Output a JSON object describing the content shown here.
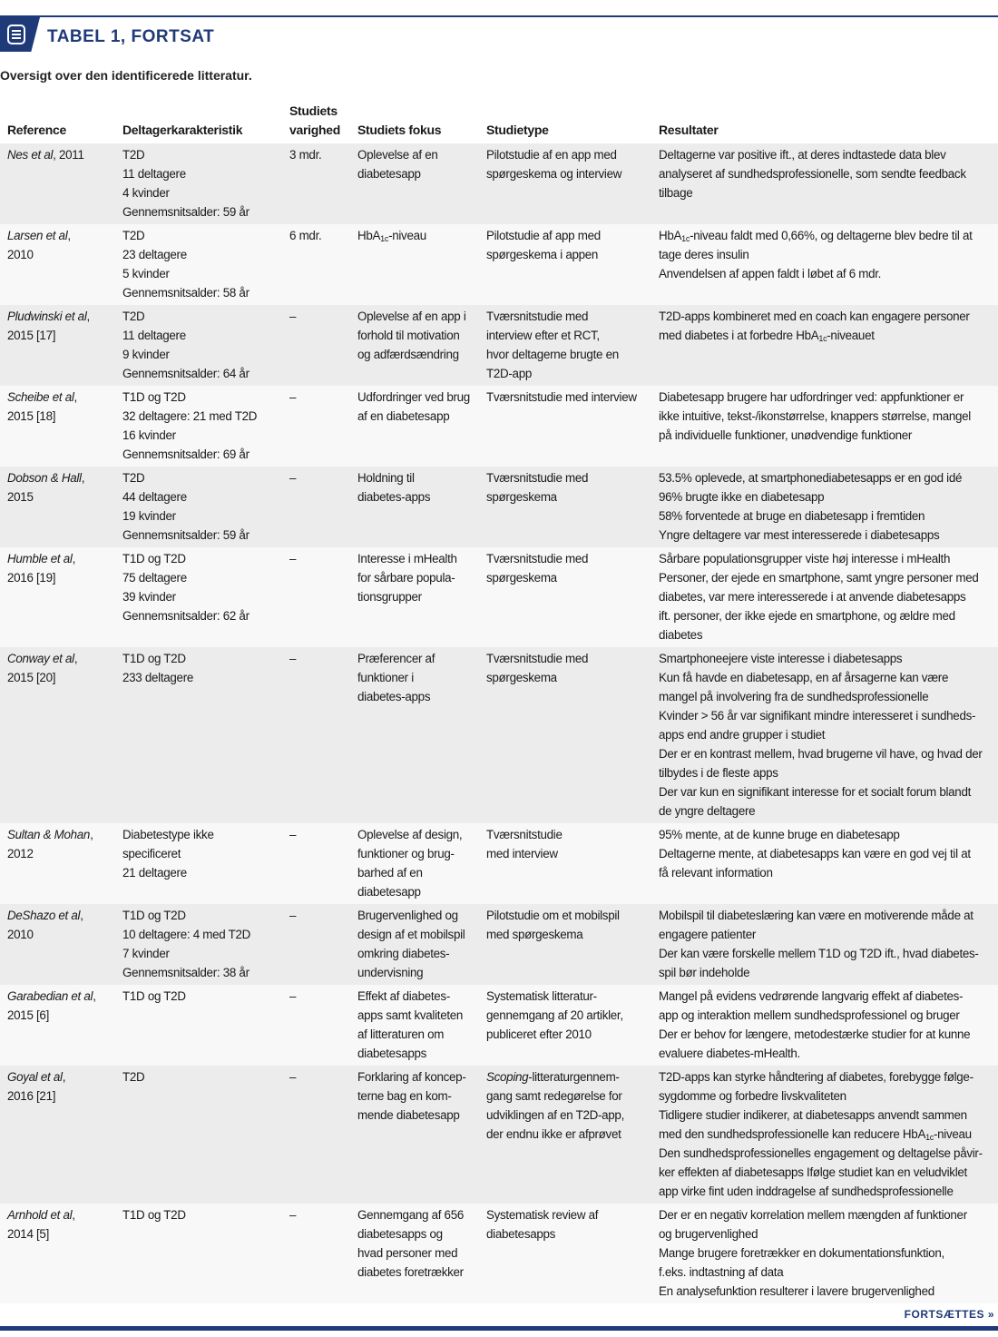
{
  "header": {
    "title": "TABEL 1, FORTSAT",
    "subtitle": "Oversigt over den identificerede litteratur.",
    "icon": "document-list-icon",
    "accent_color": "#1f3a78"
  },
  "columns": [
    "Reference",
    "Deltagerkarakteristik",
    "Studiets varighed",
    "Studiets fokus",
    "Studietype",
    "Resultater"
  ],
  "rows": [
    {
      "ref": {
        "name": "Nes et al",
        "rest": ", 2011",
        "line2": ""
      },
      "participants": [
        "T2D",
        "11 deltagere",
        "4 kvinder",
        "Gennemsnitsalder: 59 år"
      ],
      "duration": "3 mdr.",
      "focus": [
        "Oplevelse af en",
        "diabetesapp"
      ],
      "type": [
        "Pilotstudie af en app med",
        "spørgeskema og interview"
      ],
      "results": [
        "Deltagerne var positive ift., at deres indtastede data blev",
        "analyseret af sundhedsprofessionelle, som sendte feedback",
        "tilbage"
      ]
    },
    {
      "ref": {
        "name": "Larsen et al",
        "rest": ",",
        "line2": "2010"
      },
      "participants": [
        "T2D",
        "23 deltagere",
        "5 kvinder",
        "Gennemsnitsalder: 58 år"
      ],
      "duration": "6 mdr.",
      "focus": [
        "HbA1c-niveau"
      ],
      "type": [
        "Pilotstudie af app med",
        "spørgeskema i appen"
      ],
      "results": [
        "HbA1c-niveau faldt med 0,66%, og deltagerne blev bedre til at",
        "tage deres insulin",
        "Anvendelsen af appen faldt i løbet af 6 mdr."
      ]
    },
    {
      "ref": {
        "name": "Pludwinski et al",
        "rest": ",",
        "line2": "2015 [17]"
      },
      "participants": [
        "T2D",
        "11 deltagere",
        "9 kvinder",
        "Gennemsnitsalder: 64 år"
      ],
      "duration": "–",
      "focus": [
        "Oplevelse af en app i",
        "forhold til motivation",
        "og adfærdsændring"
      ],
      "type": [
        "Tværsnitstudie med",
        "interview efter et RCT,",
        "hvor deltagerne brugte en",
        "T2D-app"
      ],
      "results": [
        "T2D-apps kombineret med en coach kan engagere personer",
        "med diabetes i at forbedre HbA1c-niveauet"
      ]
    },
    {
      "ref": {
        "name": "Scheibe et al",
        "rest": ",",
        "line2": "2015 [18]"
      },
      "participants": [
        "T1D og T2D",
        "32 deltagere: 21 med T2D",
        "16 kvinder",
        "Gennemsnitsalder: 69 år"
      ],
      "duration": "–",
      "focus": [
        "Udfordringer ved brug",
        "af en diabetesapp"
      ],
      "type": [
        "Tværsnitstudie med interview"
      ],
      "results": [
        "Diabetesapp brugere har udfordringer ved: appfunktioner er",
        "ikke intuitive, tekst-/ikonstørrelse, knappers størrelse, mangel",
        "på individuelle funktioner, unødvendige funktioner"
      ]
    },
    {
      "ref": {
        "name": "Dobson & Hall",
        "rest": ",",
        "line2": "2015"
      },
      "participants": [
        "T2D",
        "44 deltagere",
        "19 kvinder",
        "Gennemsnitsalder: 59 år"
      ],
      "duration": "–",
      "focus": [
        "Holdning til",
        "diabetes-apps"
      ],
      "type": [
        "Tværsnitstudie med",
        "spørgeskema"
      ],
      "results": [
        "53.5% oplevede, at smartphonediabetesapps er en god idé",
        "96% brugte ikke en diabetesapp",
        "58% forventede at bruge en diabetesapp i fremtiden",
        "Yngre deltagere var mest interesserede i diabetesapps"
      ]
    },
    {
      "ref": {
        "name": "Humble et al",
        "rest": ",",
        "line2": "2016 [19]"
      },
      "participants": [
        "T1D og T2D",
        "75 deltagere",
        "39 kvinder",
        "Gennemsnitsalder: 62 år"
      ],
      "duration": "–",
      "focus": [
        "Interesse i mHealth",
        "for sårbare popula-",
        "tionsgrupper"
      ],
      "type": [
        "Tværsnitstudie med",
        "spørgeskema"
      ],
      "results": [
        "Sårbare populationsgrupper viste høj interesse i mHealth",
        "Personer, der ejede en smartphone, samt yngre personer med",
        "diabetes, var mere interesserede i at anvende diabetesapps",
        "ift. personer, der ikke ejede en smartphone, og ældre med",
        "diabetes"
      ]
    },
    {
      "ref": {
        "name": "Conway et al",
        "rest": ",",
        "line2": "2015 [20]"
      },
      "participants": [
        "T1D og T2D",
        "233 deltagere"
      ],
      "duration": "–",
      "focus": [
        "Præferencer af",
        "funktioner i",
        "diabetes-apps"
      ],
      "type": [
        "Tværsnitstudie med",
        "spørgeskema"
      ],
      "results": [
        "Smartphoneejere viste interesse i diabetesapps",
        "Kun få havde en diabetesapp, en af årsagerne kan være",
        "mangel på involvering fra de sundhedsprofessionelle",
        "Kvinder > 56 år var signifikant mindre interesseret i sundheds-",
        "apps end andre grupper i studiet",
        "Der er en kontrast mellem, hvad brugerne vil have, og hvad der",
        "tilbydes i de fleste apps",
        "Der var kun en signifikant interesse for et socialt forum blandt",
        "de yngre deltagere"
      ]
    },
    {
      "ref": {
        "name": "Sultan & Mohan",
        "rest": ",",
        "line2": "2012"
      },
      "participants": [
        "Diabetestype ikke",
        "specificeret",
        "21 deltagere"
      ],
      "duration": "–",
      "focus": [
        "Oplevelse af design,",
        "funktioner og brug-",
        "barhed af en",
        "diabetesapp"
      ],
      "type": [
        "Tværsnitstudie",
        "med interview"
      ],
      "results": [
        "95% mente, at de kunne bruge en diabetesapp",
        "Deltagerne mente, at diabetesapps kan være en god vej til at",
        "få relevant information"
      ]
    },
    {
      "ref": {
        "name": "DeShazo et al",
        "rest": ",",
        "line2": "2010"
      },
      "participants": [
        "T1D og T2D",
        "10 deltagere: 4 med T2D",
        "7 kvinder",
        "Gennemsnitsalder: 38 år"
      ],
      "duration": "–",
      "focus": [
        "Brugervenlighed og",
        "design af et mobilspil",
        "omkring diabetes-",
        "undervisning"
      ],
      "type": [
        "Pilotstudie om et mobilspil",
        "med spørgeskema"
      ],
      "results": [
        "Mobilspil til diabeteslæring kan være en motiverende måde at",
        "engagere patienter",
        "Der kan være forskelle mellem T1D og T2D ift., hvad diabetes-",
        "spil bør indeholde"
      ]
    },
    {
      "ref": {
        "name": "Garabedian et al",
        "rest": ",",
        "line2": "2015 [6]"
      },
      "participants": [
        "T1D og T2D"
      ],
      "duration": "–",
      "focus": [
        "Effekt af diabetes-",
        "apps samt kvaliteten",
        "af litteraturen om",
        "diabetesapps"
      ],
      "type": [
        "Systematisk litteratur-",
        "gennemgang af 20 artikler,",
        "publiceret efter 2010"
      ],
      "results": [
        "Mangel på evidens vedrørende langvarig effekt af diabetes-",
        "app og interaktion mellem sundhedsprofessionel og bruger",
        "Der er behov for længere, metodestærke studier for at kunne",
        "evaluere diabetes-mHealth."
      ]
    },
    {
      "ref": {
        "name": "Goyal et al",
        "rest": ",",
        "line2": "2016 [21]"
      },
      "participants": [
        "T2D"
      ],
      "duration": "–",
      "focus": [
        "Forklaring af koncep-",
        "terne bag en kom-",
        "mende diabetesapp"
      ],
      "type": [
        "*Scoping*-litteraturgennem-",
        "gang samt redegørelse for",
        "udviklingen af en T2D-app,",
        "der endnu ikke er afprøvet"
      ],
      "results": [
        "T2D-apps kan styrke håndtering af diabetes, forebygge følge-",
        "sygdomme og forbedre livskvaliteten",
        "Tidligere studier indikerer, at diabetesapps anvendt sammen",
        "med den sundhedsprofessionelle kan reducere HbA1c-niveau",
        "Den sundhedsprofessionelles engagement og deltagelse påvir-",
        "ker effekten af diabetesapps Ifølge studiet kan en veludviklet",
        "app virke fint uden inddragelse af sundhedsprofessionelle"
      ]
    },
    {
      "ref": {
        "name": "Arnhold et al",
        "rest": ",",
        "line2": "2014 [5]"
      },
      "participants": [
        "T1D og T2D"
      ],
      "duration": "–",
      "focus": [
        "Gennemgang af 656",
        "diabetesapps og",
        "hvad personer med",
        "diabetes foretrækker"
      ],
      "type": [
        "Systematisk review af",
        "diabetesapps"
      ],
      "results": [
        "Der er en negativ korrelation mellem mængden af funktioner",
        "og brugervenlighed",
        "Mange brugere foretrækker en dokumentationsfunktion,",
        "f.eks. indtastning af data",
        "En analysefunktion resulterer i lavere brugervenlighed"
      ]
    }
  ],
  "footer": {
    "continues": "FORTSÆTTES »"
  }
}
